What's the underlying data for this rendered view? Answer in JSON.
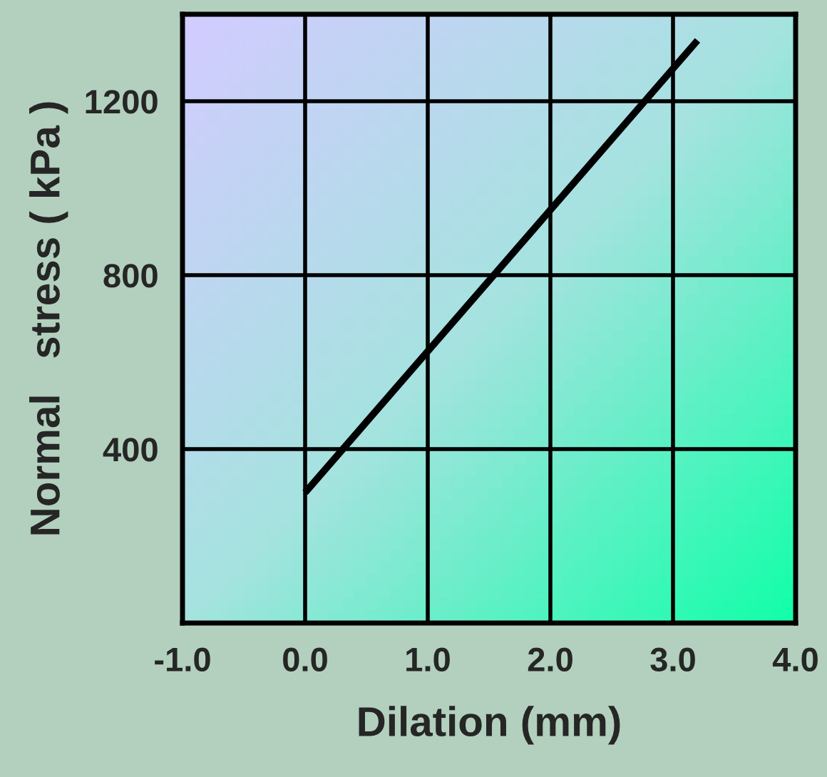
{
  "chart_data": {
    "type": "line",
    "xlabel": "Dilation (mm)",
    "ylabel": "Normal   stress ( kPa )",
    "series": [
      {
        "color": "#000000",
        "x": [
          0.0,
          3.2
        ],
        "values": [
          300,
          1340
        ]
      }
    ],
    "xlim": [
      -1.0,
      4.0
    ],
    "xticks": [
      {
        "value": -1.0,
        "label": "-1.0"
      },
      {
        "value": 0.0,
        "label": "0.0"
      },
      {
        "value": 1.0,
        "label": "1.0"
      },
      {
        "value": 2.0,
        "label": "2.0"
      },
      {
        "value": 3.0,
        "label": "3.0"
      },
      {
        "value": 4.0,
        "label": "4.0"
      }
    ],
    "ylim": [
      0,
      1400
    ],
    "yticks": [
      400,
      800,
      1200
    ],
    "grid": true,
    "line_style": "solid",
    "marker": "none",
    "legend": false
  }
}
